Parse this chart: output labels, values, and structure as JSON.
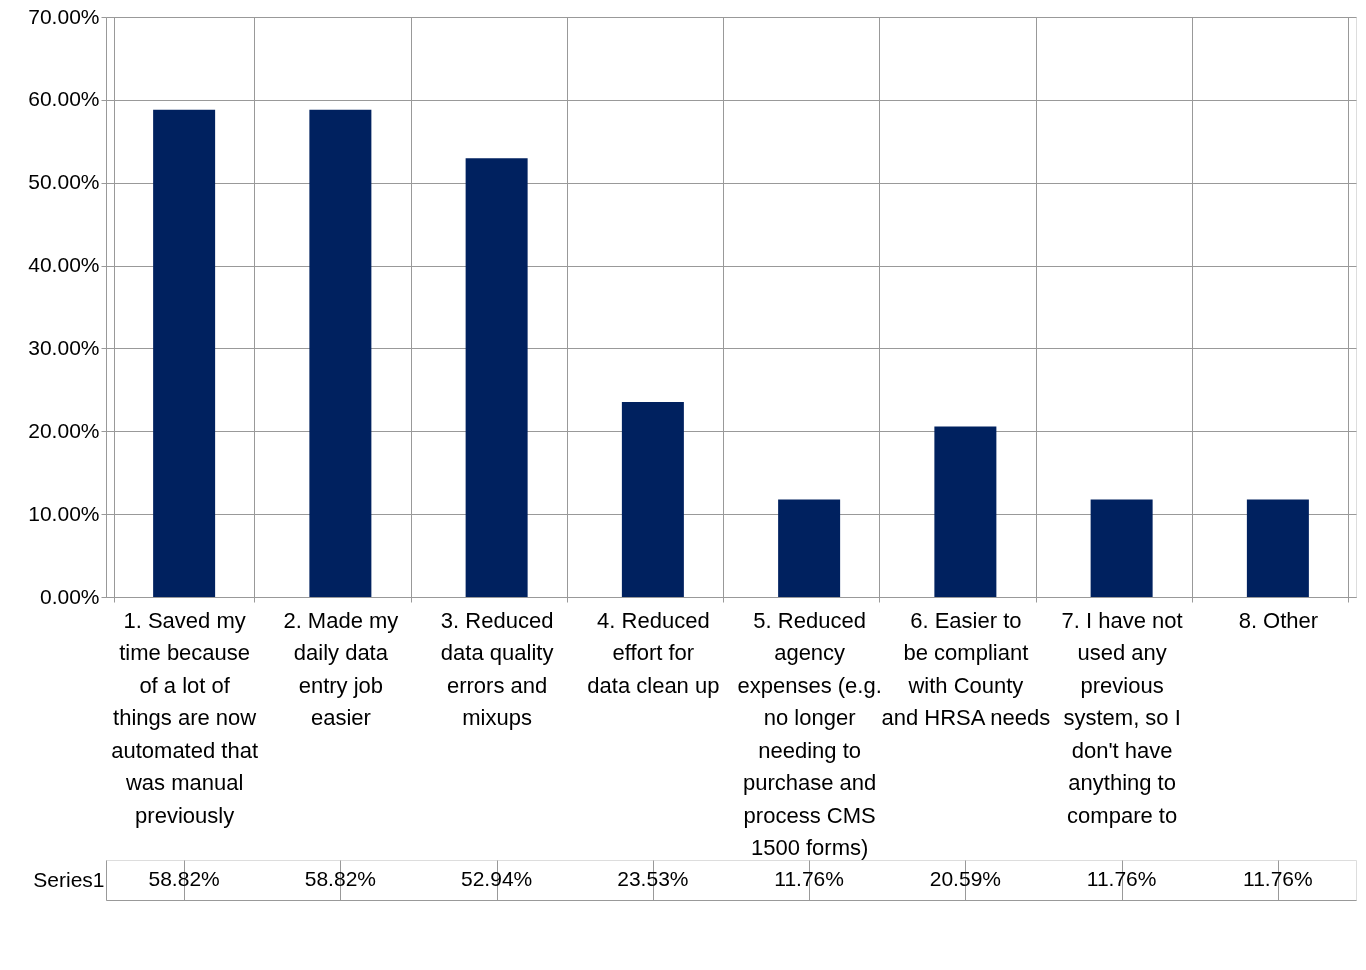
{
  "chart_data": {
    "type": "bar",
    "categories": [
      "1. Saved my time because of a lot of things are now automated that was manual previously",
      "2. Made my daily data entry job easier",
      "3. Reduced data quality errors and mixups",
      "4. Reduced effort for data clean up",
      "5. Reduced agency expenses (e.g. no longer needing to purchase and process CMS 1500 forms)",
      "6. Easier to be compliant with County and HRSA needs",
      "7. I have not used any previous system, so I don't have anything to compare to",
      "8. Other"
    ],
    "series": [
      {
        "name": "Series1",
        "color": "#00215f",
        "values": [
          58.82,
          58.82,
          52.94,
          23.53,
          11.76,
          20.59,
          11.76,
          11.76
        ],
        "value_labels": [
          "58.82%",
          "58.82%",
          "52.94%",
          "23.53%",
          "11.76%",
          "20.59%",
          "11.76%",
          "11.76%"
        ]
      }
    ],
    "ylim": [
      0,
      70
    ],
    "yticks": [
      {
        "value": 0,
        "label": "0.00%"
      },
      {
        "value": 10,
        "label": "10.00%"
      },
      {
        "value": 20,
        "label": "20.00%"
      },
      {
        "value": 30,
        "label": "30.00%"
      },
      {
        "value": 40,
        "label": "40.00%"
      },
      {
        "value": 50,
        "label": "50.00%"
      },
      {
        "value": 60,
        "label": "60.00%"
      },
      {
        "value": 70,
        "label": "70.00%"
      }
    ],
    "grid": "y"
  }
}
